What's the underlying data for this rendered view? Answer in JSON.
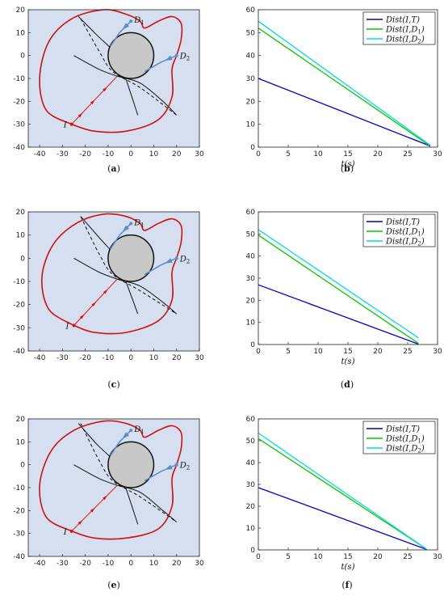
{
  "chart_data": [
    {
      "type": "line",
      "panel": "trajectory",
      "caption": "(a)",
      "xlim": [
        -45,
        30
      ],
      "ylim": [
        -40,
        20
      ],
      "xticks": [
        -40,
        -30,
        -20,
        -10,
        0,
        10,
        20,
        30
      ],
      "yticks": [
        -40,
        -30,
        -20,
        -10,
        0,
        10,
        20
      ],
      "labels": {
        "attacker": "I",
        "defender1": "D1",
        "defender2": "D2"
      },
      "circle": {
        "cx": 0,
        "cy": 0,
        "r": 10
      },
      "points": {
        "I": [
          -26,
          -30
        ],
        "D1": [
          0,
          15
        ],
        "D2": [
          20,
          0
        ]
      },
      "red_curve": [
        [
          -26,
          -30
        ],
        [
          -37,
          -24
        ],
        [
          -40,
          -10
        ],
        [
          -36,
          6
        ],
        [
          -26,
          16
        ],
        [
          -12,
          20
        ],
        [
          -2,
          18
        ],
        [
          4,
          15
        ],
        [
          6,
          12
        ],
        [
          12,
          15
        ],
        [
          18,
          17
        ],
        [
          22,
          14
        ],
        [
          22,
          7
        ],
        [
          20,
          0
        ],
        [
          18,
          -6
        ],
        [
          18,
          -18
        ],
        [
          12,
          -28
        ],
        [
          -2,
          -33
        ],
        [
          -16,
          -33
        ],
        [
          -26,
          -30
        ]
      ],
      "red_path": [
        [
          -26,
          -30
        ],
        [
          -6,
          -9
        ]
      ],
      "blue_d1": [
        [
          0,
          15
        ],
        [
          -5,
          10
        ],
        [
          -9,
          4
        ]
      ],
      "blue_d2": [
        [
          20,
          0
        ],
        [
          13,
          -3
        ],
        [
          6,
          -7
        ]
      ],
      "black_curves": [
        [
          [
            -23,
            17
          ],
          [
            -15,
            9
          ],
          [
            -7,
            1
          ],
          [
            -3,
            -8
          ],
          [
            3,
            -26
          ]
        ],
        [
          [
            -25,
            0
          ],
          [
            -14,
            -6
          ],
          [
            -6,
            -9
          ],
          [
            4,
            -12
          ],
          [
            14,
            -20
          ],
          [
            20,
            -26
          ]
        ]
      ],
      "dashed": [
        [
          -22,
          16
        ],
        [
          -14,
          2
        ],
        [
          -8,
          -7
        ],
        [
          4,
          -14
        ],
        [
          20,
          -26
        ]
      ]
    },
    {
      "type": "line",
      "panel": "distance",
      "caption": "(b)",
      "xlabel": "t(s)",
      "xlim": [
        0,
        30
      ],
      "ylim": [
        0,
        60
      ],
      "xticks": [
        0,
        5,
        10,
        15,
        20,
        25,
        30
      ],
      "yticks": [
        0,
        10,
        20,
        30,
        40,
        50,
        60
      ],
      "series": [
        {
          "name": "Dist(I,T)",
          "color": "#0000cc",
          "points": [
            [
              0,
              30
            ],
            [
              28.8,
              0.5
            ]
          ]
        },
        {
          "name": "Dist(I,D1)",
          "color": "#00cc00",
          "points": [
            [
              0,
              52
            ],
            [
              28.6,
              0.8
            ]
          ]
        },
        {
          "name": "Dist(I,D2)",
          "color": "#00dddd",
          "points": [
            [
              0,
              55
            ],
            [
              28.8,
              0.8
            ]
          ]
        }
      ]
    },
    {
      "type": "line",
      "panel": "trajectory",
      "caption": "(c)",
      "xlim": [
        -45,
        30
      ],
      "ylim": [
        -40,
        20
      ],
      "xticks": [
        -40,
        -30,
        -20,
        -10,
        0,
        10,
        20,
        30
      ],
      "yticks": [
        -40,
        -30,
        -20,
        -10,
        0,
        10,
        20
      ],
      "labels": {
        "attacker": "I",
        "defender1": "D1",
        "defender2": "D2"
      },
      "circle": {
        "cx": 0,
        "cy": 0,
        "r": 10
      },
      "points": {
        "I": [
          -25,
          -29
        ],
        "D1": [
          0,
          15
        ],
        "D2": [
          20,
          0
        ]
      },
      "red_curve": [
        [
          -25,
          -29
        ],
        [
          -36,
          -22
        ],
        [
          -39,
          -8
        ],
        [
          -34,
          6
        ],
        [
          -24,
          15
        ],
        [
          -12,
          19
        ],
        [
          -2,
          18
        ],
        [
          4,
          15
        ],
        [
          6,
          12
        ],
        [
          12,
          15
        ],
        [
          18,
          17
        ],
        [
          22,
          14
        ],
        [
          22,
          7
        ],
        [
          20,
          0
        ],
        [
          18,
          -6
        ],
        [
          18,
          -18
        ],
        [
          12,
          -27
        ],
        [
          -2,
          -32
        ],
        [
          -16,
          -32
        ],
        [
          -25,
          -29
        ]
      ],
      "red_path": [
        [
          -25,
          -29
        ],
        [
          -6,
          -9
        ]
      ],
      "blue_d1": [
        [
          0,
          15
        ],
        [
          -5,
          10
        ],
        [
          -9,
          4
        ]
      ],
      "blue_d2": [
        [
          20,
          0
        ],
        [
          13,
          -3
        ],
        [
          6,
          -7
        ]
      ],
      "black_curves": [
        [
          [
            -22,
            18
          ],
          [
            -14,
            9
          ],
          [
            -7,
            1
          ],
          [
            -3,
            -8
          ],
          [
            3,
            -24
          ]
        ],
        [
          [
            -25,
            0
          ],
          [
            -14,
            -6
          ],
          [
            -6,
            -9
          ],
          [
            4,
            -12
          ],
          [
            14,
            -19
          ],
          [
            20,
            -24
          ]
        ]
      ],
      "dashed": [
        [
          -22,
          18
        ],
        [
          -14,
          2
        ],
        [
          -8,
          -7
        ],
        [
          4,
          -14
        ],
        [
          20,
          -24
        ]
      ]
    },
    {
      "type": "line",
      "panel": "distance",
      "caption": "(d)",
      "xlabel": "t(s)",
      "xlim": [
        0,
        30
      ],
      "ylim": [
        0,
        60
      ],
      "xticks": [
        0,
        5,
        10,
        15,
        20,
        25,
        30
      ],
      "yticks": [
        0,
        10,
        20,
        30,
        40,
        50,
        60
      ],
      "series": [
        {
          "name": "Dist(I,T)",
          "color": "#0000cc",
          "points": [
            [
              0,
              27
            ],
            [
              26.8,
              0.2
            ]
          ]
        },
        {
          "name": "Dist(I,D1)",
          "color": "#00cc00",
          "points": [
            [
              0,
              49.5
            ],
            [
              26.8,
              0.5
            ]
          ]
        },
        {
          "name": "Dist(I,D2)",
          "color": "#00dddd",
          "points": [
            [
              0,
              52
            ],
            [
              26.8,
              3
            ]
          ]
        }
      ]
    },
    {
      "type": "line",
      "panel": "trajectory",
      "caption": "(e)",
      "xlim": [
        -45,
        30
      ],
      "ylim": [
        -40,
        20
      ],
      "xticks": [
        -40,
        -30,
        -20,
        -10,
        0,
        10,
        20,
        30
      ],
      "yticks": [
        -40,
        -30,
        -20,
        -10,
        0,
        10,
        20
      ],
      "labels": {
        "attacker": "I",
        "defender1": "D1",
        "defender2": "D2"
      },
      "circle": {
        "cx": 0,
        "cy": 0,
        "r": 10
      },
      "points": {
        "I": [
          -26,
          -29
        ],
        "D1": [
          0,
          15
        ],
        "D2": [
          20,
          0
        ]
      },
      "red_curve": [
        [
          -26,
          -29
        ],
        [
          -37,
          -23
        ],
        [
          -40,
          -9
        ],
        [
          -35,
          6
        ],
        [
          -25,
          15
        ],
        [
          -12,
          19
        ],
        [
          -2,
          18
        ],
        [
          4,
          15
        ],
        [
          6,
          12
        ],
        [
          12,
          15
        ],
        [
          18,
          17
        ],
        [
          22,
          14
        ],
        [
          22,
          7
        ],
        [
          20,
          0
        ],
        [
          18,
          -6
        ],
        [
          18,
          -18
        ],
        [
          12,
          -28
        ],
        [
          -2,
          -32
        ],
        [
          -16,
          -32
        ],
        [
          -26,
          -29
        ]
      ],
      "red_path": [
        [
          -26,
          -29
        ],
        [
          -6,
          -9
        ]
      ],
      "blue_d1": [
        [
          0,
          15
        ],
        [
          -5,
          10
        ],
        [
          -9,
          4
        ]
      ],
      "blue_d2": [
        [
          20,
          0
        ],
        [
          13,
          -3
        ],
        [
          6,
          -7
        ]
      ],
      "black_curves": [
        [
          [
            -23,
            18
          ],
          [
            -15,
            9
          ],
          [
            -7,
            1
          ],
          [
            -3,
            -8
          ],
          [
            3,
            -26
          ]
        ],
        [
          [
            -25,
            0
          ],
          [
            -14,
            -6
          ],
          [
            -6,
            -9
          ],
          [
            4,
            -12
          ],
          [
            14,
            -20
          ],
          [
            20,
            -25
          ]
        ]
      ],
      "dashed": [
        [
          -22,
          18
        ],
        [
          -14,
          2
        ],
        [
          -8,
          -7
        ],
        [
          4,
          -14
        ],
        [
          20,
          -25
        ]
      ]
    },
    {
      "type": "line",
      "panel": "distance",
      "caption": "(f)",
      "xlabel": "t(s)",
      "xlim": [
        0,
        30
      ],
      "ylim": [
        0,
        60
      ],
      "xticks": [
        0,
        5,
        10,
        15,
        20,
        25,
        30
      ],
      "yticks": [
        0,
        10,
        20,
        30,
        40,
        50,
        60
      ],
      "series": [
        {
          "name": "Dist(I,T)",
          "color": "#0000cc",
          "points": [
            [
              0,
              28.5
            ],
            [
              28.2,
              0.2
            ]
          ]
        },
        {
          "name": "Dist(I,D1)",
          "color": "#00cc00",
          "points": [
            [
              0,
              51
            ],
            [
              28.2,
              0.3
            ]
          ]
        },
        {
          "name": "Dist(I,D2)",
          "color": "#00dddd",
          "points": [
            [
              0,
              53.5
            ],
            [
              28.2,
              0.3
            ]
          ]
        }
      ]
    }
  ],
  "colors": {
    "background_fill": "#d5dff0",
    "circle_fill": "#c8c8c8",
    "red": "#cc1111",
    "blue": "#5b8fc7"
  }
}
